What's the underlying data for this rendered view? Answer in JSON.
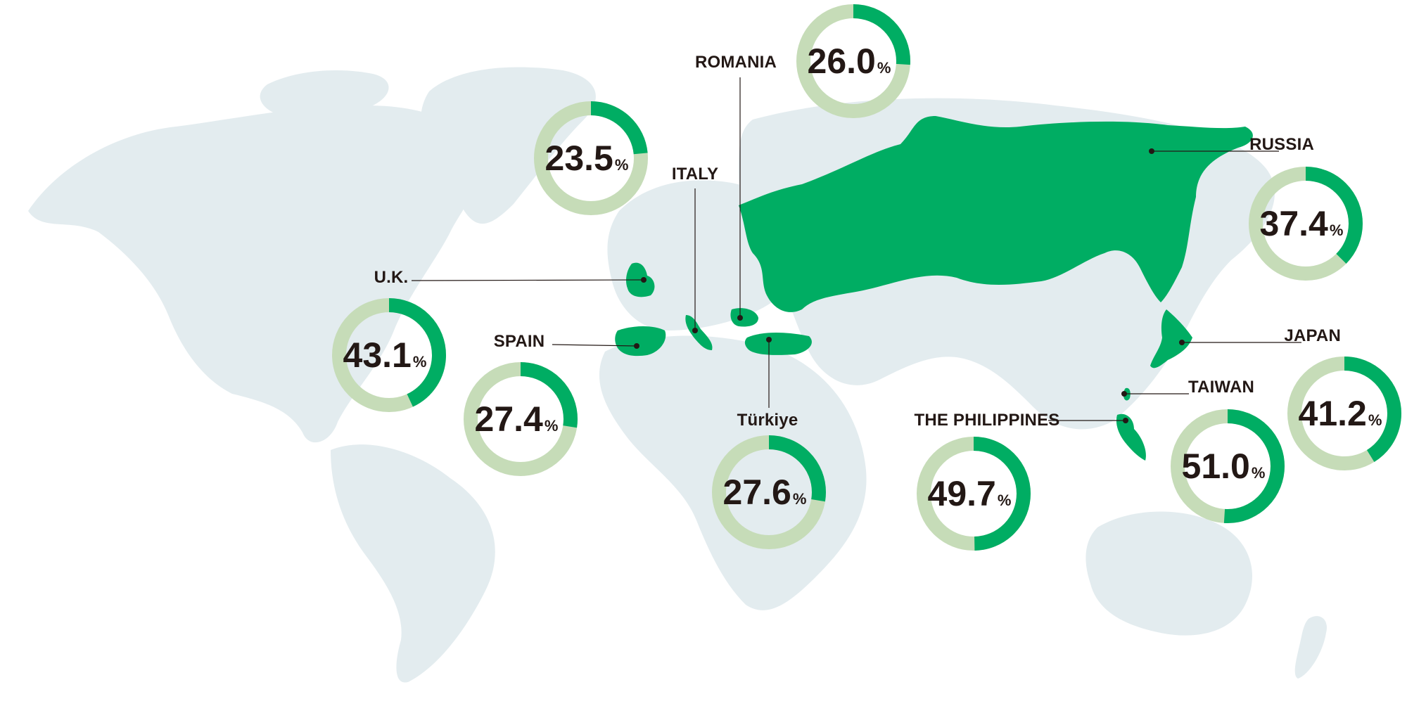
{
  "colors": {
    "land": "#e3ecef",
    "highlight": "#00ad63",
    "ring_track": "#c6dcb8",
    "ring_fill": "#00ad63",
    "text": "#231815",
    "leader": "#231815"
  },
  "unit": "%",
  "markers": [
    {
      "id": "uk",
      "label": "U.K.",
      "value": 43.1
    },
    {
      "id": "spain",
      "label": "SPAIN",
      "value": 27.4
    },
    {
      "id": "italy",
      "label": "ITALY",
      "value": 23.5
    },
    {
      "id": "romania",
      "label": "ROMANIA",
      "value": 26.0
    },
    {
      "id": "turkiye",
      "label": "Türkiye",
      "value": 27.6
    },
    {
      "id": "russia",
      "label": "RUSSIA",
      "value": 37.4
    },
    {
      "id": "japan",
      "label": "JAPAN",
      "value": 41.2
    },
    {
      "id": "taiwan",
      "label": "TAIWAN",
      "value": 51.0
    },
    {
      "id": "philippines",
      "label": "THE PHILIPPINES",
      "value": 49.7
    }
  ]
}
